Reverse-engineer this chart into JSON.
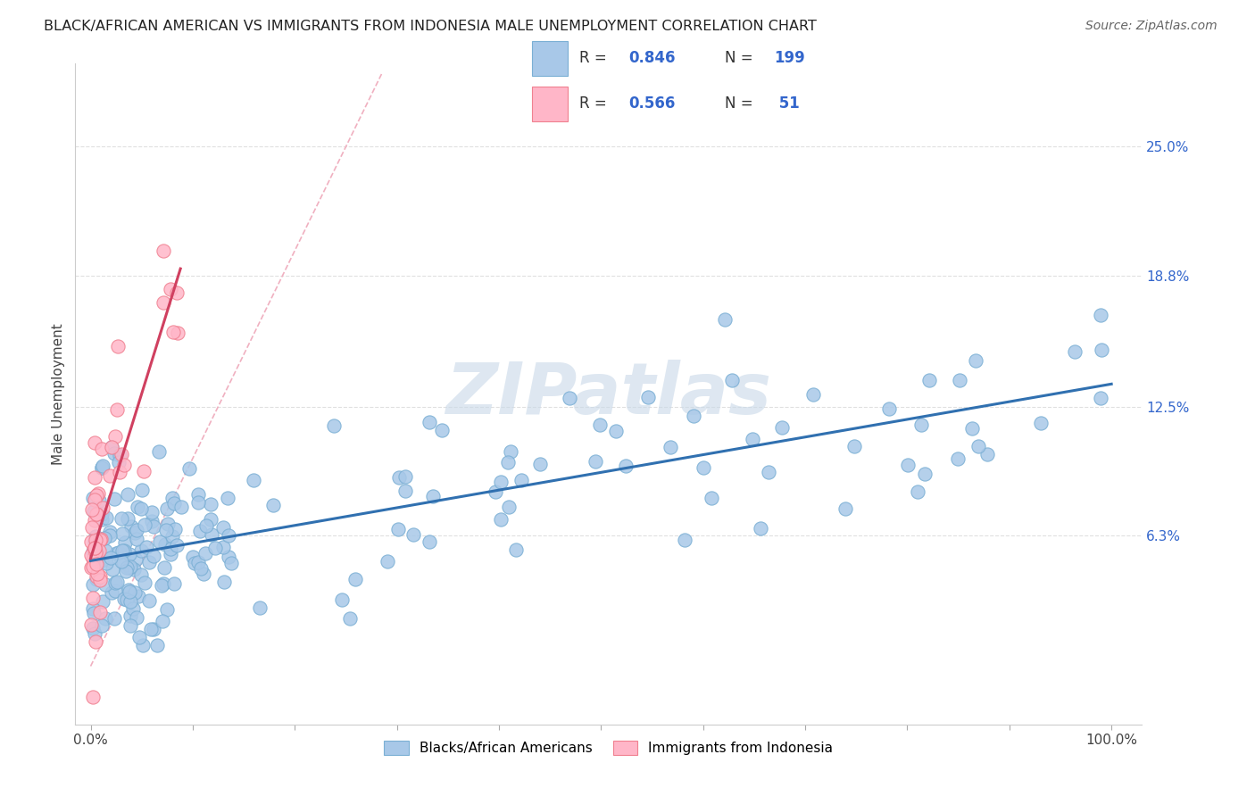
{
  "title": "BLACK/AFRICAN AMERICAN VS IMMIGRANTS FROM INDONESIA MALE UNEMPLOYMENT CORRELATION CHART",
  "source": "Source: ZipAtlas.com",
  "ylabel": "Male Unemployment",
  "ytick_positions": [
    0.063,
    0.125,
    0.188,
    0.25
  ],
  "ytick_labels": [
    "6.3%",
    "12.5%",
    "18.8%",
    "25.0%"
  ],
  "blue_R": "0.846",
  "blue_N": "199",
  "pink_R": "0.566",
  "pink_N": "51",
  "blue_dot_color": "#a8c8e8",
  "blue_dot_edge": "#7aafd4",
  "pink_dot_color": "#ffb6c8",
  "pink_dot_edge": "#f08090",
  "blue_line_color": "#3070b0",
  "pink_line_color": "#d04060",
  "diag_line_color": "#f0b0c0",
  "grid_color": "#e0e0e0",
  "watermark_color": "#c8d8e8",
  "legend_text_color": "#3366cc",
  "legend_label_blue": "Blacks/African Americans",
  "legend_label_pink": "Immigrants from Indonesia"
}
